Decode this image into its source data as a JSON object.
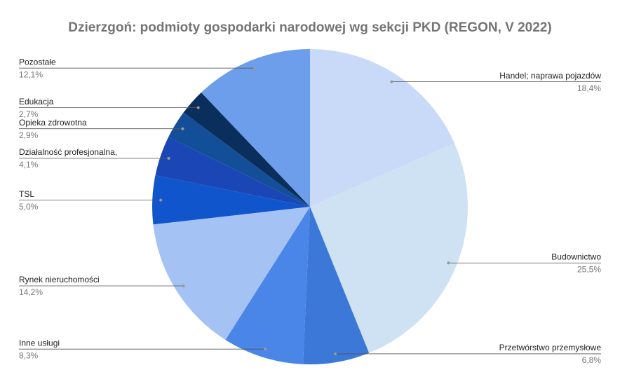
{
  "chart_data": {
    "type": "pie",
    "title": "Dzierzgoń: podmioty gospodarki narodowej wg sekcji PKD (REGON, V 2022)",
    "categories": [
      "Handel; naprawa pojazdów",
      "Budownictwo",
      "Przetwórstwo przemysłowe",
      "Inne usługi",
      "Rynek nieruchomości",
      "TSL",
      "Działalność profesjonalna,",
      "Opieka zdrowotna",
      "Edukacja",
      "Pozostałe"
    ],
    "values": [
      18.4,
      25.5,
      6.8,
      8.3,
      14.2,
      5.0,
      4.1,
      2.9,
      2.7,
      12.1
    ],
    "value_labels": [
      "18,4%",
      "25,5%",
      "6,8%",
      "8,3%",
      "14,2%",
      "5,0%",
      "4,1%",
      "2,9%",
      "2,7%",
      "12,1%"
    ],
    "colors": [
      "#c9daf8",
      "#cfe2f3",
      "#3c78d8",
      "#4a86e8",
      "#a4c2f4",
      "#1155cc",
      "#1a47b5",
      "#134f99",
      "#0b2f5c",
      "#6d9eeb"
    ]
  }
}
